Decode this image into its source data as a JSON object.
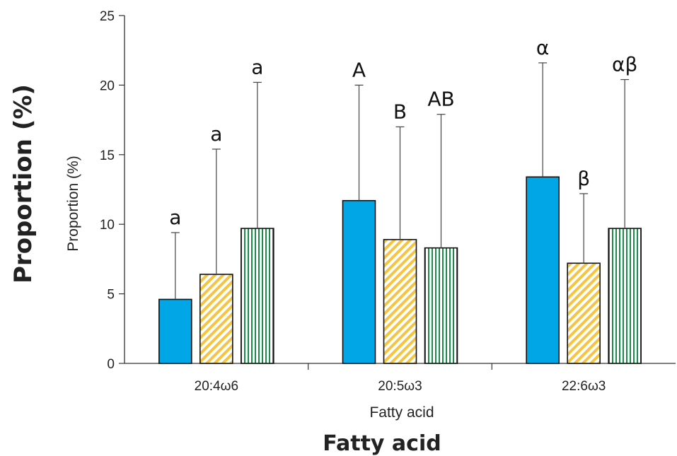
{
  "chart_data": {
    "type": "bar",
    "categories": [
      "20:4ω6",
      "20:5ω3",
      "22:6ω3"
    ],
    "series": [
      {
        "values": [
          4.6,
          11.7,
          13.4
        ],
        "errors_upper": [
          9.4,
          20.0,
          21.6
        ],
        "color": "#00a6e6",
        "pattern": "solid"
      },
      {
        "values": [
          6.4,
          8.9,
          7.2
        ],
        "errors_upper": [
          15.4,
          17.0,
          12.2
        ],
        "color": "#f5c542",
        "pattern": "diagonal-stripes"
      },
      {
        "values": [
          9.7,
          8.3,
          9.7
        ],
        "errors_upper": [
          20.2,
          17.9,
          20.4
        ],
        "color": "#1e8a4a",
        "pattern": "vertical-stripes"
      }
    ],
    "significance_labels": [
      [
        "a",
        "a",
        "a"
      ],
      [
        "A",
        "B",
        "AB"
      ],
      [
        "α",
        "β",
        "αβ"
      ]
    ],
    "ylim": [
      0,
      25
    ],
    "yticks": [
      0,
      5,
      10,
      15,
      20,
      25
    ],
    "xlabel": "Fatty acid",
    "ylabel": "Proportion (%)",
    "ylabel_overlay": "Proportion (%)",
    "xlabel_overlay": "Fatty acid",
    "grid": false,
    "legend": "none"
  }
}
